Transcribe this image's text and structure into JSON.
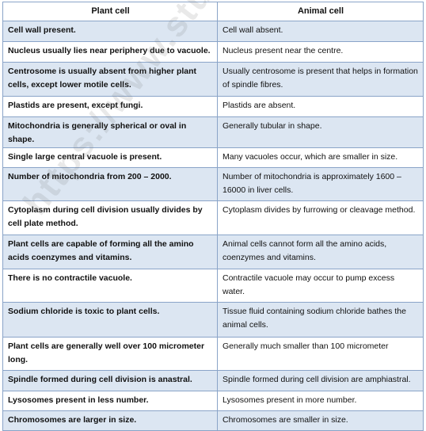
{
  "table": {
    "headers": [
      "Plant cell",
      "Animal cell"
    ],
    "rows": [
      [
        "Cell wall present.",
        "Cell wall absent."
      ],
      [
        "Nucleus usually lies near periphery due to vacuole.",
        "Nucleus present near the centre."
      ],
      [
        "Centrosome is usually absent from higher plant cells, except lower motile cells.",
        "Usually centrosome is present that helps in formation of spindle fibres."
      ],
      [
        "Plastids are present, except fungi.",
        "Plastids are absent."
      ],
      [
        "Mitochondria is generally spherical or oval in shape.",
        "Generally tubular in shape."
      ],
      [
        "Single large central vacuole is present.",
        "Many vacuoles occur, which are smaller in size."
      ],
      [
        "Number of mitochondria from 200 – 2000.",
        "Number of mitochondria is approximately 1600 – 16000 in liver cells."
      ],
      [
        "Cytoplasm during cell division usually divides by cell plate method.",
        "Cytoplasm divides by furrowing or cleavage method."
      ],
      [
        "Plant cells are capable of forming all the amino acids coenzymes and vitamins.",
        "Animal cells cannot form all the amino acids, coenzymes and vitamins."
      ],
      [
        "There is no contractile vacuole.",
        "Contractile vacuole may occur to pump excess water."
      ],
      [
        "Sodium chloride is toxic to plant cells.",
        "Tissue fluid containing sodium chloride bathes the animal cells."
      ],
      [
        "Plant cells are generally well over 100 micrometer long.",
        "Generally much smaller than 100 micrometer"
      ],
      [
        "Spindle formed during cell division is anastral.",
        "Spindle formed during cell division are amphiastral."
      ],
      [
        "Lysosomes present in less number.",
        "Lysosomes present in more number."
      ],
      [
        "Chromosomes are larger in size.",
        "Chromosomes are smaller in size."
      ]
    ]
  },
  "watermark": "https://www.studiestoday.com"
}
